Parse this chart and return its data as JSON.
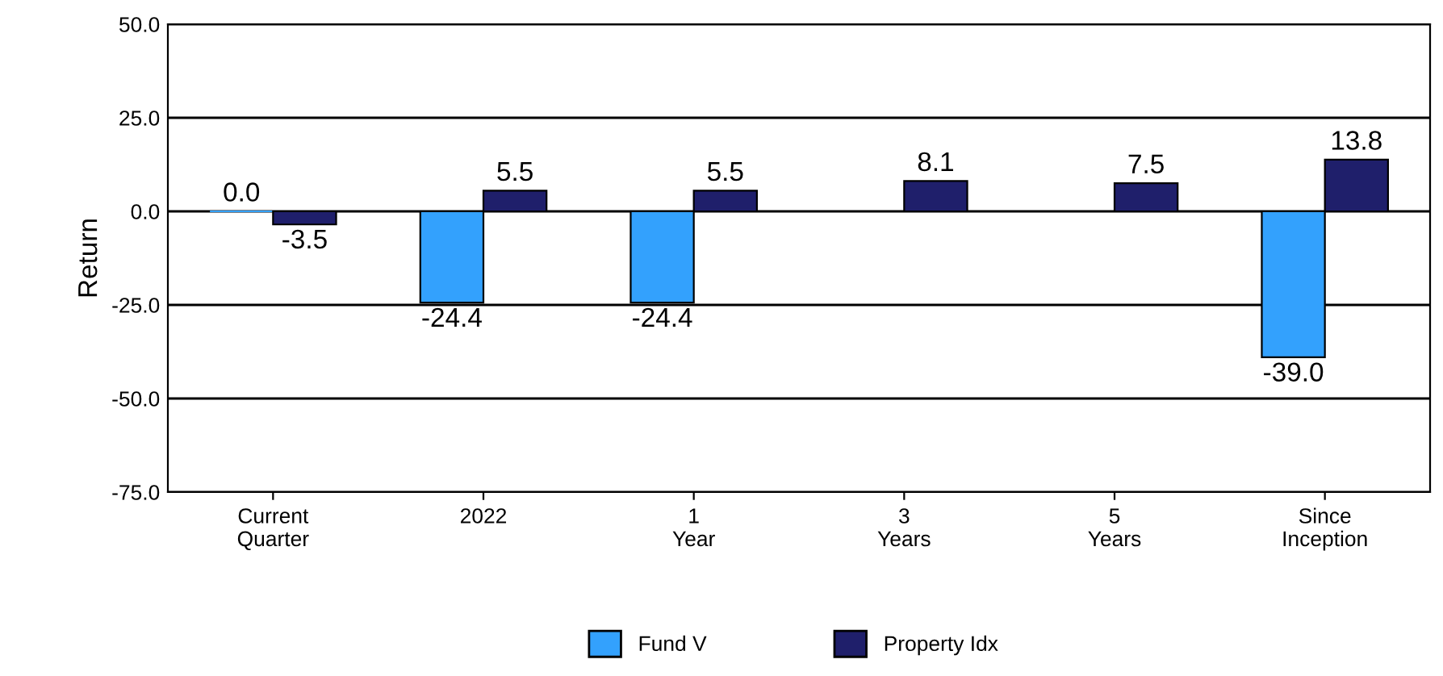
{
  "chart_data": {
    "type": "bar",
    "ylabel": "Return",
    "categories": [
      "Current\nQuarter",
      "2022",
      "1\nYear",
      "3\nYears",
      "5\nYears",
      "Since\nInception"
    ],
    "series": [
      {
        "name": "Fund V",
        "color": "#33a1fd",
        "values": [
          0.0,
          -24.4,
          -24.4,
          null,
          null,
          -39.0
        ],
        "value_labels": [
          "0.0",
          "-24.4",
          "-24.4",
          null,
          null,
          "-39.0"
        ]
      },
      {
        "name": "Property Idx",
        "color": "#1f1f6b",
        "values": [
          -3.5,
          5.5,
          5.5,
          8.1,
          7.5,
          13.8
        ],
        "value_labels": [
          "-3.5",
          "5.5",
          "5.5",
          "8.1",
          "7.5",
          "13.8"
        ]
      }
    ],
    "ylim": [
      -75,
      50
    ],
    "yticks": [
      {
        "value": -75,
        "label": "-75.0"
      },
      {
        "value": -50,
        "label": "-50.0"
      },
      {
        "value": -25,
        "label": "-25.0"
      },
      {
        "value": 0,
        "label": "0.0"
      },
      {
        "value": 25,
        "label": "25.0"
      },
      {
        "value": 50,
        "label": "50.0"
      }
    ],
    "grid": "y",
    "legend": "bottom"
  }
}
